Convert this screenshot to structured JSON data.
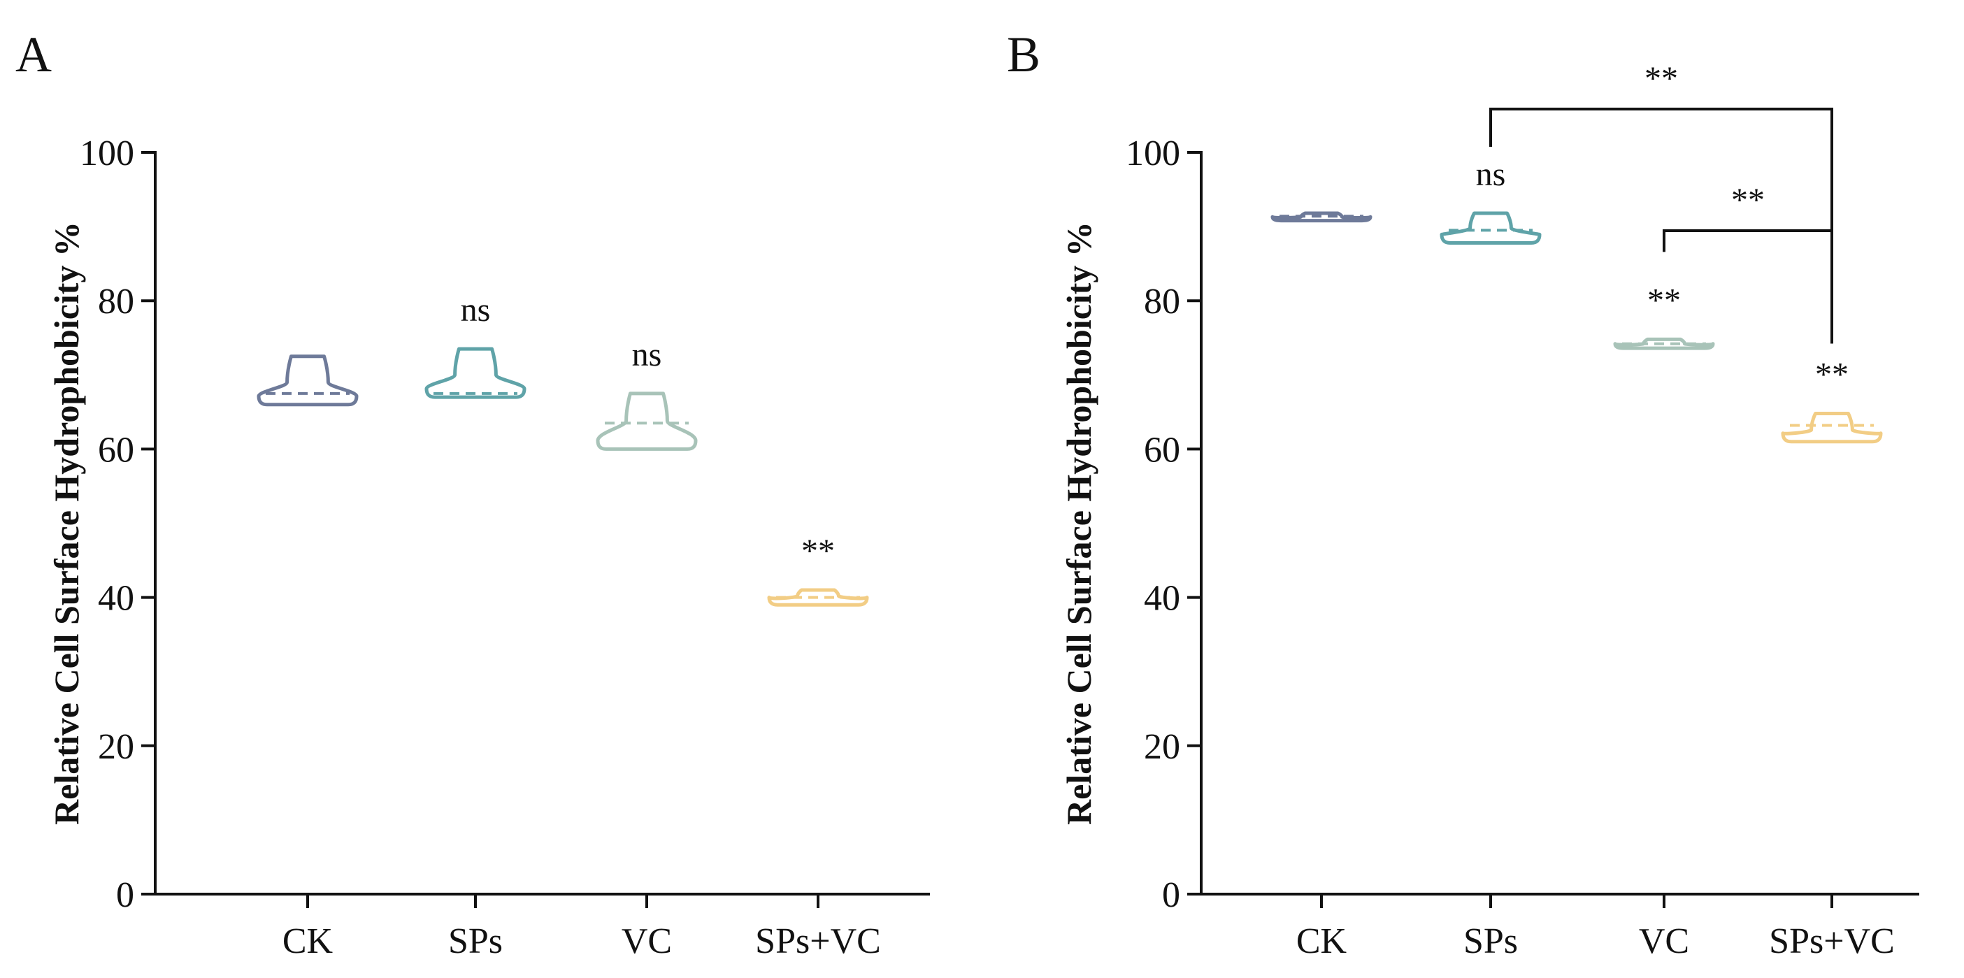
{
  "chart_data": [
    {
      "type": "violin",
      "panel": "A",
      "ylabel": "Relative Cell Surface Hydrophobicity %",
      "xlabel": "",
      "ylim": [
        0,
        100
      ],
      "yticks": [
        "0",
        "20",
        "40",
        "60",
        "80",
        "100"
      ],
      "grid": false,
      "categories": [
        "CK",
        "SPs",
        "VC",
        "SPs+VC"
      ],
      "series": [
        {
          "min": 66.0,
          "max": 72.5,
          "median": 67.5,
          "neck": 69.0,
          "color": "#6E7A99",
          "annotation": ""
        },
        {
          "min": 67.0,
          "max": 73.5,
          "median": 67.5,
          "neck": 70.0,
          "color": "#5FA3A8",
          "annotation": "ns"
        },
        {
          "min": 60.0,
          "max": 67.5,
          "median": 63.5,
          "neck": 63.8,
          "color": "#A8C3B8",
          "annotation": "ns"
        },
        {
          "min": 39.0,
          "max": 41.0,
          "median": 40.0,
          "neck": 40.2,
          "color": "#F2CD85",
          "annotation": "**"
        }
      ]
    },
    {
      "type": "violin",
      "panel": "B",
      "ylabel": "Relative Cell Surface Hydrophobicity %",
      "xlabel": "",
      "ylim": [
        0,
        100
      ],
      "yticks": [
        "0",
        "20",
        "40",
        "60",
        "80",
        "100"
      ],
      "grid": false,
      "categories": [
        "CK",
        "SPs",
        "VC",
        "SPs+VC"
      ],
      "series": [
        {
          "min": 90.8,
          "max": 91.8,
          "median": 91.4,
          "neck": 91.3,
          "color": "#6E7A99",
          "annotation": ""
        },
        {
          "min": 87.8,
          "max": 91.8,
          "median": 89.5,
          "neck": 89.8,
          "color": "#5FA3A8",
          "annotation": "ns"
        },
        {
          "min": 73.6,
          "max": 74.8,
          "median": 74.2,
          "neck": 74.2,
          "color": "#A8C3B8",
          "annotation": "**"
        },
        {
          "min": 61.0,
          "max": 64.8,
          "median": 63.2,
          "neck": 62.6,
          "color": "#F2CD85",
          "annotation": "**"
        }
      ],
      "comparisons": [
        {
          "from": "SPs",
          "to": "SPs+VC",
          "label": "**"
        },
        {
          "from": "VC",
          "to": "SPs+VC",
          "label": "**"
        }
      ]
    }
  ]
}
